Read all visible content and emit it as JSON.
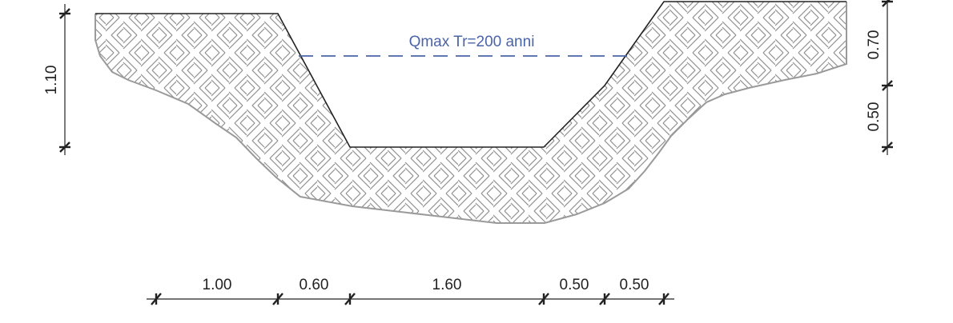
{
  "water_level": {
    "label": "Qmax Tr=200 anni",
    "color": "#4a64a8"
  },
  "colors": {
    "outline": "#222222",
    "hatch": "#8f8f8f",
    "dimension": "#222222"
  },
  "bottom_dimensions": [
    "1.00",
    "0.60",
    "1.60",
    "0.50",
    "0.50"
  ],
  "left_dimension": "1.10",
  "right_dimensions": {
    "upper": "0.70",
    "lower": "0.50"
  }
}
